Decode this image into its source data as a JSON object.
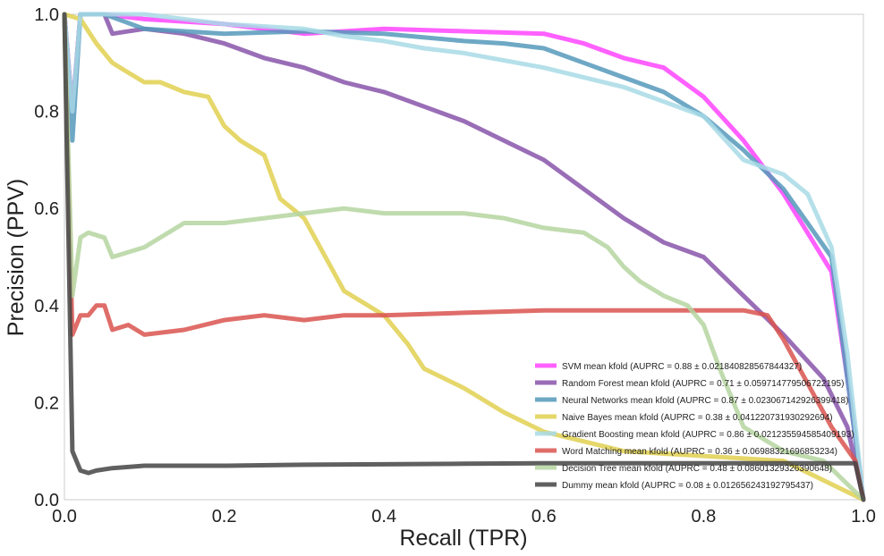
{
  "chart_data": {
    "type": "line",
    "title": "",
    "xlabel": "Recall (TPR)",
    "ylabel": "Precision (PPV)",
    "xlim": [
      0.0,
      1.0
    ],
    "ylim": [
      0.0,
      1.0
    ],
    "xticks": [
      "0.0",
      "0.2",
      "0.4",
      "0.6",
      "0.8",
      "1.0"
    ],
    "yticks": [
      "0.0",
      "0.2",
      "0.4",
      "0.6",
      "0.8",
      "1.0"
    ],
    "grid": false,
    "legend_position": "lower-right",
    "series": [
      {
        "name": "SVM mean kfold (AUPRC = 0.88 ± 0.021840828567844327)",
        "color": "#ff44ff",
        "x": [
          0.0,
          0.01,
          0.02,
          0.05,
          0.1,
          0.2,
          0.3,
          0.4,
          0.5,
          0.6,
          0.65,
          0.7,
          0.75,
          0.8,
          0.85,
          0.9,
          0.93,
          0.96,
          0.98,
          1.0
        ],
        "y": [
          1.0,
          0.8,
          1.0,
          1.0,
          0.99,
          0.98,
          0.96,
          0.97,
          0.965,
          0.96,
          0.94,
          0.91,
          0.89,
          0.83,
          0.74,
          0.63,
          0.55,
          0.47,
          0.25,
          0.0
        ]
      },
      {
        "name": "Random Forest mean kfold (AUPRC = 0.71 ± 0.059714779506722195)",
        "color": "#8855aa",
        "x": [
          0.0,
          0.01,
          0.02,
          0.05,
          0.06,
          0.1,
          0.15,
          0.2,
          0.25,
          0.3,
          0.35,
          0.4,
          0.45,
          0.5,
          0.55,
          0.6,
          0.65,
          0.7,
          0.75,
          0.8,
          0.85,
          0.9,
          0.95,
          0.98,
          1.0
        ],
        "y": [
          1.0,
          0.8,
          1.0,
          1.0,
          0.96,
          0.97,
          0.96,
          0.94,
          0.91,
          0.89,
          0.86,
          0.84,
          0.81,
          0.78,
          0.74,
          0.7,
          0.64,
          0.58,
          0.53,
          0.5,
          0.42,
          0.34,
          0.25,
          0.15,
          0.0
        ]
      },
      {
        "name": "Neural Networks mean kfold (AUPRC = 0.87 ± 0.023067142926399418)",
        "color": "#5599bb",
        "x": [
          0.0,
          0.01,
          0.02,
          0.05,
          0.1,
          0.2,
          0.3,
          0.4,
          0.5,
          0.55,
          0.6,
          0.65,
          0.7,
          0.75,
          0.8,
          0.85,
          0.9,
          0.93,
          0.96,
          0.98,
          1.0
        ],
        "y": [
          1.0,
          0.74,
          1.0,
          1.0,
          0.97,
          0.96,
          0.965,
          0.96,
          0.945,
          0.94,
          0.93,
          0.9,
          0.87,
          0.84,
          0.79,
          0.72,
          0.64,
          0.57,
          0.5,
          0.25,
          0.0
        ]
      },
      {
        "name": "Naive Bayes mean kfold (AUPRC = 0.38 ± 0.041220731930292694)",
        "color": "#e0d050",
        "x": [
          0.0,
          0.02,
          0.04,
          0.06,
          0.08,
          0.1,
          0.12,
          0.15,
          0.18,
          0.2,
          0.22,
          0.25,
          0.27,
          0.3,
          0.33,
          0.35,
          0.38,
          0.4,
          0.43,
          0.45,
          0.5,
          0.55,
          0.6,
          0.7,
          0.8,
          0.9,
          1.0
        ],
        "y": [
          1.0,
          0.99,
          0.94,
          0.9,
          0.88,
          0.86,
          0.86,
          0.84,
          0.83,
          0.77,
          0.74,
          0.71,
          0.62,
          0.58,
          0.49,
          0.43,
          0.4,
          0.38,
          0.32,
          0.27,
          0.23,
          0.18,
          0.14,
          0.1,
          0.09,
          0.08,
          0.0
        ]
      },
      {
        "name": "Gradient Boosting mean kfold (AUPRC = 0.86 ± 0.021235594585409193)",
        "color": "#a8dae6",
        "x": [
          0.0,
          0.01,
          0.02,
          0.05,
          0.1,
          0.2,
          0.3,
          0.35,
          0.4,
          0.45,
          0.5,
          0.55,
          0.6,
          0.65,
          0.7,
          0.75,
          0.8,
          0.85,
          0.9,
          0.93,
          0.96,
          0.98,
          1.0
        ],
        "y": [
          1.0,
          0.8,
          1.0,
          1.0,
          1.0,
          0.98,
          0.97,
          0.955,
          0.945,
          0.93,
          0.92,
          0.905,
          0.89,
          0.87,
          0.85,
          0.82,
          0.79,
          0.7,
          0.67,
          0.63,
          0.52,
          0.3,
          0.0
        ]
      },
      {
        "name": "Word Matching mean kfold (AUPRC = 0.36 ± 0.06988321696853234)",
        "color": "#d9534f",
        "x": [
          0.0,
          0.01,
          0.02,
          0.03,
          0.04,
          0.05,
          0.06,
          0.08,
          0.1,
          0.15,
          0.2,
          0.25,
          0.3,
          0.35,
          0.4,
          0.5,
          0.6,
          0.7,
          0.8,
          0.85,
          0.88,
          0.9,
          0.93,
          0.96,
          0.99,
          1.0
        ],
        "y": [
          1.0,
          0.34,
          0.38,
          0.38,
          0.4,
          0.4,
          0.35,
          0.36,
          0.34,
          0.35,
          0.37,
          0.38,
          0.37,
          0.38,
          0.38,
          0.385,
          0.39,
          0.39,
          0.39,
          0.39,
          0.38,
          0.33,
          0.24,
          0.15,
          0.08,
          0.0
        ]
      },
      {
        "name": "Decision Tree mean kfold (AUPRC = 0.48 ± 0.08601329326390648)",
        "color": "#b5d5a0",
        "x": [
          0.0,
          0.01,
          0.02,
          0.03,
          0.05,
          0.06,
          0.08,
          0.1,
          0.15,
          0.2,
          0.25,
          0.3,
          0.35,
          0.4,
          0.45,
          0.5,
          0.55,
          0.6,
          0.65,
          0.68,
          0.7,
          0.72,
          0.75,
          0.78,
          0.8,
          0.82,
          0.85,
          0.9,
          0.95,
          1.0
        ],
        "y": [
          1.0,
          0.42,
          0.54,
          0.55,
          0.54,
          0.5,
          0.51,
          0.52,
          0.57,
          0.57,
          0.58,
          0.59,
          0.6,
          0.59,
          0.59,
          0.59,
          0.58,
          0.56,
          0.55,
          0.52,
          0.48,
          0.45,
          0.42,
          0.4,
          0.36,
          0.27,
          0.15,
          0.1,
          0.08,
          0.0
        ]
      },
      {
        "name": "Dummy mean kfold (AUPRC = 0.08 ± 0.012656243192795437)",
        "color": "#444444",
        "x": [
          0.0,
          0.01,
          0.02,
          0.03,
          0.04,
          0.06,
          0.1,
          0.2,
          0.3,
          0.4,
          0.5,
          0.6,
          0.7,
          0.8,
          0.9,
          0.95,
          0.99,
          1.0
        ],
        "y": [
          1.0,
          0.1,
          0.06,
          0.055,
          0.06,
          0.065,
          0.07,
          0.07,
          0.072,
          0.073,
          0.074,
          0.075,
          0.075,
          0.075,
          0.075,
          0.075,
          0.075,
          0.0
        ]
      }
    ]
  }
}
